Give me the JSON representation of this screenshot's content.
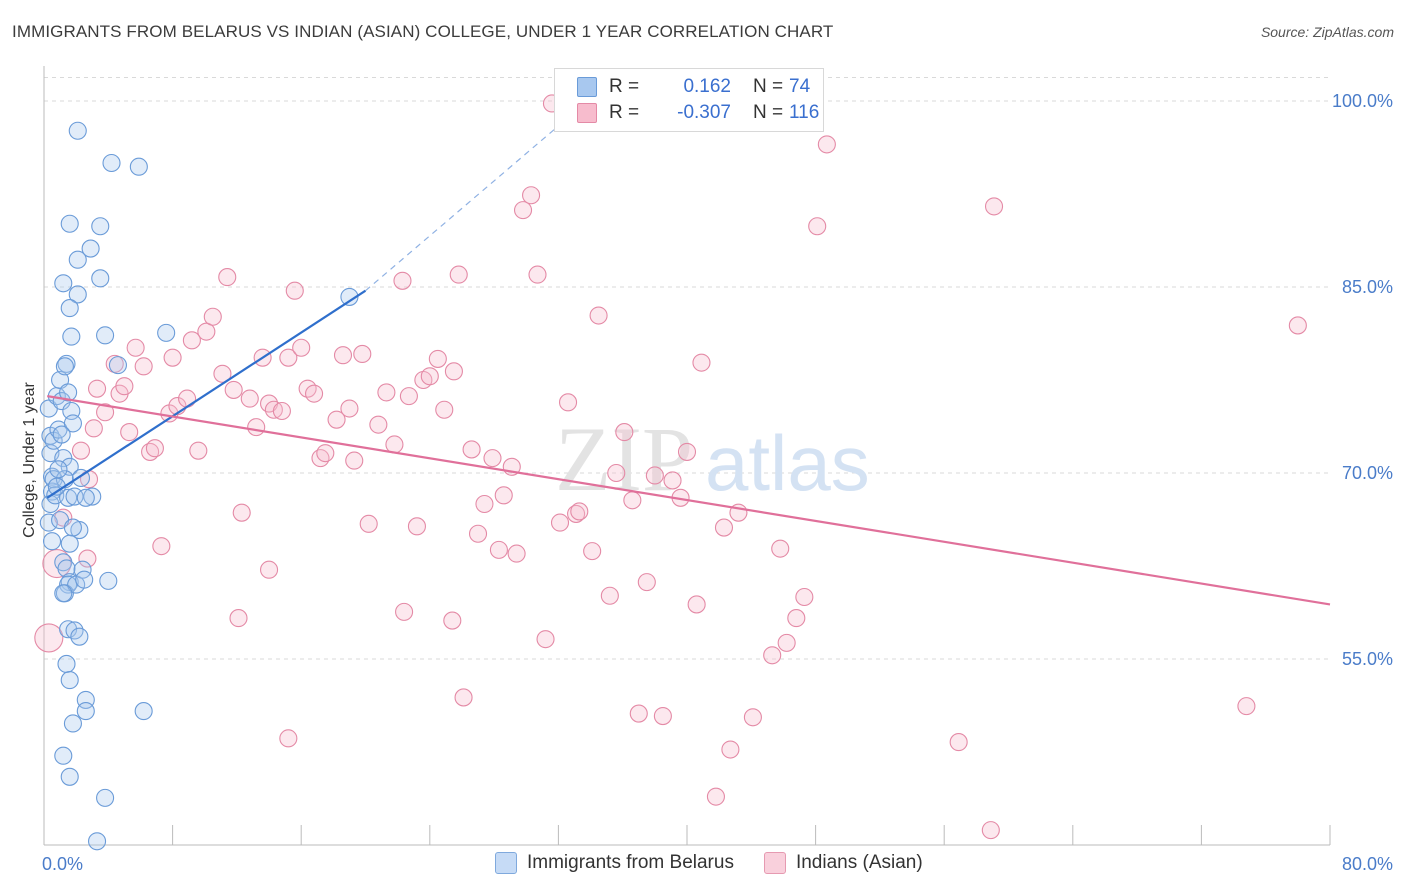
{
  "title": "IMMIGRANTS FROM BELARUS VS INDIAN (ASIAN) COLLEGE, UNDER 1 YEAR CORRELATION CHART",
  "source": "Source: ZipAtlas.com",
  "watermark": {
    "zip": "ZIP",
    "atlas": "atlas"
  },
  "legend": {
    "rows": [
      {
        "r_label": "R =",
        "r_value": "0.162",
        "n_label": "N =",
        "n_value": "74",
        "color": "#a8c8ef",
        "border": "#6a9bd8"
      },
      {
        "r_label": "R =",
        "r_value": "-0.307",
        "n_label": "N =",
        "n_value": "116",
        "color": "#f7bccd",
        "border": "#e48aa6"
      }
    ]
  },
  "bottom_legend": [
    {
      "label": "Immigrants from Belarus",
      "color": "#c6dbf6",
      "border": "#7fa9dd"
    },
    {
      "label": "Indians (Asian)",
      "color": "#f9d0dc",
      "border": "#e69ab1"
    }
  ],
  "chart_data": {
    "type": "scatter",
    "title": "IMMIGRANTS FROM BELARUS VS INDIAN (ASIAN) COLLEGE, UNDER 1 YEAR CORRELATION CHART",
    "xlabel": "",
    "ylabel": "College, Under 1 year",
    "xlim": [
      0,
      80
    ],
    "ylim": [
      40,
      102.5
    ],
    "x_tick_labels": [
      "0.0%",
      "80.0%"
    ],
    "y_ticks": [
      55,
      70,
      85,
      100
    ],
    "y_tick_labels": [
      "55.0%",
      "70.0%",
      "85.0%",
      "100.0%"
    ],
    "grid": true,
    "series": [
      {
        "name": "Immigrants from Belarus",
        "color": "#6a9bd8",
        "fill": "rgba(168,200,239,0.35)",
        "trend": {
          "x": [
            0.2,
            20.0
          ],
          "y": [
            68.0,
            84.7
          ],
          "extend_to": [
            34.0,
            100.2
          ]
        },
        "points": [
          [
            0.3,
            75.2
          ],
          [
            0.4,
            73.0
          ],
          [
            0.4,
            71.6
          ],
          [
            0.5,
            69.7
          ],
          [
            0.5,
            68.5
          ],
          [
            0.6,
            69.5
          ],
          [
            0.3,
            66.0
          ],
          [
            0.5,
            64.5
          ],
          [
            0.4,
            67.5
          ],
          [
            0.7,
            68.2
          ],
          [
            0.6,
            72.6
          ],
          [
            0.8,
            76.2
          ],
          [
            0.9,
            73.5
          ],
          [
            1.0,
            77.5
          ],
          [
            1.1,
            75.8
          ],
          [
            1.2,
            71.2
          ],
          [
            1.4,
            78.8
          ],
          [
            1.5,
            76.5
          ],
          [
            1.6,
            70.5
          ],
          [
            1.7,
            75.0
          ],
          [
            1.8,
            74.0
          ],
          [
            1.3,
            69.5
          ],
          [
            1.5,
            68.0
          ],
          [
            1.9,
            68.1
          ],
          [
            1.0,
            66.2
          ],
          [
            1.2,
            62.8
          ],
          [
            1.4,
            62.3
          ],
          [
            1.6,
            61.2
          ],
          [
            1.5,
            61.0
          ],
          [
            1.3,
            60.3
          ],
          [
            2.0,
            61.0
          ],
          [
            2.2,
            65.4
          ],
          [
            2.4,
            62.2
          ],
          [
            2.5,
            61.4
          ],
          [
            1.8,
            65.6
          ],
          [
            1.6,
            64.3
          ],
          [
            1.5,
            57.4
          ],
          [
            1.9,
            57.3
          ],
          [
            2.2,
            56.8
          ],
          [
            1.4,
            54.6
          ],
          [
            1.6,
            53.3
          ],
          [
            2.6,
            51.7
          ],
          [
            2.6,
            50.8
          ],
          [
            1.8,
            49.8
          ],
          [
            1.2,
            47.2
          ],
          [
            1.6,
            45.5
          ],
          [
            3.8,
            43.8
          ],
          [
            3.3,
            40.3
          ],
          [
            6.2,
            50.8
          ],
          [
            4.0,
            61.3
          ],
          [
            1.6,
            90.1
          ],
          [
            3.5,
            89.9
          ],
          [
            2.1,
            87.2
          ],
          [
            2.9,
            88.1
          ],
          [
            1.2,
            85.3
          ],
          [
            3.5,
            85.7
          ],
          [
            2.1,
            84.4
          ],
          [
            1.6,
            83.3
          ],
          [
            1.7,
            81.0
          ],
          [
            3.8,
            81.1
          ],
          [
            1.3,
            78.6
          ],
          [
            4.6,
            78.7
          ],
          [
            7.6,
            81.3
          ],
          [
            19.0,
            84.2
          ],
          [
            4.2,
            95.0
          ],
          [
            5.9,
            94.7
          ],
          [
            2.1,
            97.6
          ],
          [
            1.2,
            60.3
          ],
          [
            3.0,
            68.1
          ],
          [
            2.3,
            69.6
          ],
          [
            0.8,
            68.9
          ],
          [
            1.1,
            73.1
          ],
          [
            2.6,
            68.0
          ],
          [
            0.9,
            70.3
          ]
        ]
      },
      {
        "name": "Indians (Asian)",
        "color": "#e48aa6",
        "fill": "rgba(247,188,205,0.35)",
        "trend": {
          "x": [
            0.2,
            80.0
          ],
          "y": [
            76.2,
            59.4
          ]
        },
        "points": [
          [
            0.3,
            56.7
          ],
          [
            0.8,
            62.7
          ],
          [
            1.2,
            66.4
          ],
          [
            2.3,
            71.8
          ],
          [
            2.8,
            69.5
          ],
          [
            3.1,
            73.6
          ],
          [
            3.3,
            76.8
          ],
          [
            3.8,
            74.9
          ],
          [
            4.4,
            78.8
          ],
          [
            4.7,
            76.4
          ],
          [
            5.0,
            77.0
          ],
          [
            5.3,
            73.3
          ],
          [
            5.7,
            80.1
          ],
          [
            6.2,
            78.6
          ],
          [
            6.6,
            71.7
          ],
          [
            6.9,
            72.0
          ],
          [
            7.3,
            64.1
          ],
          [
            7.8,
            74.8
          ],
          [
            8.0,
            79.3
          ],
          [
            8.3,
            75.4
          ],
          [
            8.9,
            76.0
          ],
          [
            9.2,
            80.7
          ],
          [
            9.6,
            71.8
          ],
          [
            10.1,
            81.4
          ],
          [
            10.5,
            82.6
          ],
          [
            11.1,
            78.0
          ],
          [
            11.4,
            85.8
          ],
          [
            11.8,
            76.7
          ],
          [
            12.3,
            66.8
          ],
          [
            12.8,
            76.0
          ],
          [
            13.2,
            73.7
          ],
          [
            13.6,
            79.3
          ],
          [
            14.0,
            75.6
          ],
          [
            14.3,
            75.1
          ],
          [
            14.8,
            75.0
          ],
          [
            15.2,
            79.3
          ],
          [
            15.6,
            84.7
          ],
          [
            16.0,
            80.1
          ],
          [
            16.4,
            76.8
          ],
          [
            16.8,
            76.4
          ],
          [
            17.2,
            71.2
          ],
          [
            17.5,
            71.6
          ],
          [
            18.2,
            74.3
          ],
          [
            18.6,
            79.5
          ],
          [
            19.0,
            75.2
          ],
          [
            19.3,
            71.0
          ],
          [
            19.8,
            79.6
          ],
          [
            20.2,
            65.9
          ],
          [
            20.8,
            73.9
          ],
          [
            21.3,
            76.5
          ],
          [
            21.8,
            72.3
          ],
          [
            22.3,
            85.5
          ],
          [
            22.7,
            76.2
          ],
          [
            23.2,
            65.7
          ],
          [
            23.6,
            77.5
          ],
          [
            24.0,
            77.8
          ],
          [
            24.5,
            79.2
          ],
          [
            24.9,
            75.1
          ],
          [
            25.4,
            58.1
          ],
          [
            25.8,
            86.0
          ],
          [
            26.1,
            51.9
          ],
          [
            26.6,
            71.9
          ],
          [
            27.0,
            65.1
          ],
          [
            27.4,
            67.5
          ],
          [
            27.9,
            71.2
          ],
          [
            28.3,
            63.8
          ],
          [
            28.6,
            68.2
          ],
          [
            29.1,
            70.5
          ],
          [
            29.4,
            63.5
          ],
          [
            29.8,
            91.2
          ],
          [
            30.3,
            92.4
          ],
          [
            30.7,
            86.0
          ],
          [
            31.2,
            56.6
          ],
          [
            31.6,
            99.8
          ],
          [
            32.1,
            66.0
          ],
          [
            32.6,
            75.7
          ],
          [
            33.1,
            66.7
          ],
          [
            33.3,
            66.9
          ],
          [
            34.1,
            63.7
          ],
          [
            34.5,
            82.7
          ],
          [
            35.2,
            60.1
          ],
          [
            35.6,
            70.0
          ],
          [
            36.1,
            73.3
          ],
          [
            36.6,
            67.8
          ],
          [
            37.0,
            50.6
          ],
          [
            37.5,
            61.2
          ],
          [
            38.0,
            69.8
          ],
          [
            38.5,
            50.4
          ],
          [
            39.1,
            69.4
          ],
          [
            39.6,
            68.0
          ],
          [
            40.0,
            71.7
          ],
          [
            40.6,
            59.4
          ],
          [
            40.9,
            78.9
          ],
          [
            41.8,
            43.9
          ],
          [
            42.3,
            65.6
          ],
          [
            42.7,
            47.7
          ],
          [
            43.2,
            66.8
          ],
          [
            44.1,
            50.3
          ],
          [
            45.3,
            55.3
          ],
          [
            45.8,
            63.9
          ],
          [
            46.2,
            56.3
          ],
          [
            46.8,
            58.3
          ],
          [
            47.3,
            60.0
          ],
          [
            48.1,
            89.9
          ],
          [
            22.4,
            58.8
          ],
          [
            25.5,
            78.2
          ],
          [
            15.2,
            48.6
          ],
          [
            14.0,
            62.2
          ],
          [
            48.7,
            96.5
          ],
          [
            56.9,
            48.3
          ],
          [
            58.9,
            41.2
          ],
          [
            59.1,
            91.5
          ],
          [
            74.8,
            51.2
          ],
          [
            78.0,
            81.9
          ],
          [
            12.1,
            58.3
          ],
          [
            2.7,
            63.1
          ]
        ]
      }
    ]
  }
}
